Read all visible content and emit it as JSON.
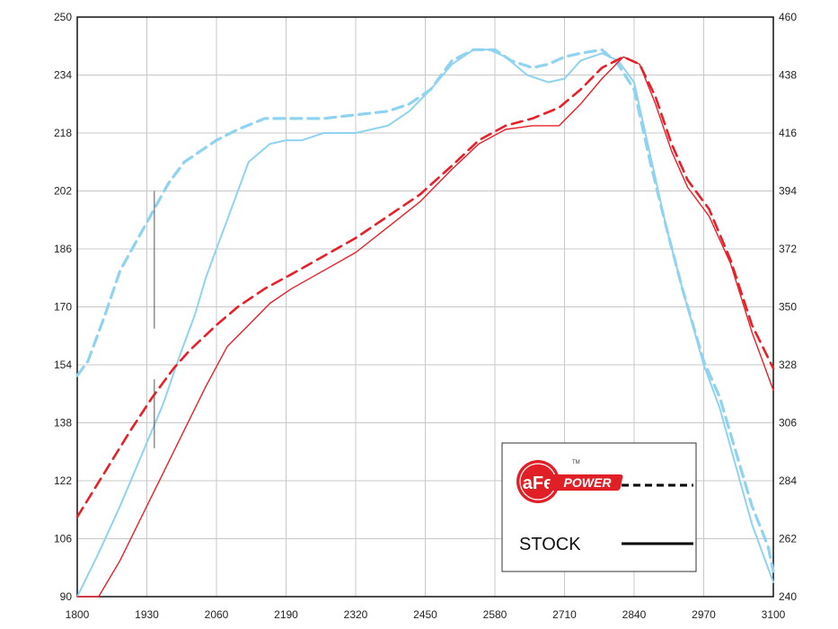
{
  "chart_data": {
    "type": "line",
    "title": "",
    "xlabel": "",
    "ylabel": "",
    "xlim": [
      1800,
      3100
    ],
    "ylim_left": [
      90,
      250
    ],
    "ylim_right": [
      240,
      460
    ],
    "x_ticks": [
      "1800",
      "1930",
      "2060",
      "2190",
      "2320",
      "2450",
      "2580",
      "2710",
      "2840",
      "2970",
      "3100"
    ],
    "y_left_ticks": [
      "90",
      "106",
      "122",
      "138",
      "154",
      "170",
      "186",
      "202",
      "218",
      "234",
      "250"
    ],
    "y_right_ticks": [
      "240",
      "262",
      "284",
      "306",
      "328",
      "350",
      "372",
      "394",
      "416",
      "438",
      "460"
    ],
    "grid": true,
    "colors": {
      "blue": "#8fd3f0",
      "red": "#e8202a",
      "grid": "#c8c8c8",
      "frame": "#111111"
    },
    "series": [
      {
        "color": "blue",
        "style": "dashed",
        "axis": "left",
        "x": [
          1800,
          1820,
          1850,
          1880,
          1910,
          1940,
          1970,
          2000,
          2030,
          2060,
          2100,
          2150,
          2200,
          2260,
          2320,
          2380,
          2420,
          2460,
          2500,
          2540,
          2580,
          2610,
          2650,
          2680,
          2710,
          2740,
          2780,
          2810,
          2840,
          2870,
          2900,
          2930,
          2970,
          3000,
          3030,
          3060,
          3090,
          3100
        ],
        "y": [
          151,
          155,
          167,
          180,
          188,
          196,
          204,
          210,
          213,
          216,
          219,
          222,
          222,
          222,
          223,
          224,
          226,
          230,
          238,
          241,
          241,
          238,
          236,
          237,
          239,
          240,
          241,
          237,
          230,
          210,
          192,
          175,
          155,
          145,
          130,
          115,
          104,
          97
        ]
      },
      {
        "color": "blue",
        "style": "solid",
        "axis": "left",
        "x": [
          1800,
          1840,
          1880,
          1920,
          1960,
          1990,
          2020,
          2040,
          2060,
          2080,
          2120,
          2160,
          2190,
          2220,
          2260,
          2320,
          2380,
          2420,
          2460,
          2500,
          2540,
          2570,
          2600,
          2640,
          2680,
          2710,
          2740,
          2780,
          2810,
          2840,
          2870,
          2900,
          2930,
          2970,
          3000,
          3030,
          3060,
          3090,
          3100
        ],
        "y": [
          90,
          102,
          115,
          129,
          143,
          156,
          168,
          178,
          186,
          194,
          210,
          215,
          216,
          216,
          218,
          218,
          220,
          224,
          230,
          237,
          241,
          241,
          239,
          234,
          232,
          233,
          238,
          240,
          238,
          232,
          212,
          192,
          175,
          154,
          142,
          126,
          110,
          98,
          94
        ]
      },
      {
        "color": "red",
        "style": "dashed",
        "axis": "left",
        "x": [
          1800,
          1850,
          1900,
          1940,
          1980,
          2010,
          2060,
          2100,
          2150,
          2200,
          2260,
          2320,
          2380,
          2440,
          2500,
          2550,
          2600,
          2650,
          2700,
          2740,
          2780,
          2820,
          2850,
          2880,
          2910,
          2940,
          2980,
          3020,
          3060,
          3100
        ],
        "y": [
          112,
          124,
          136,
          145,
          153,
          158,
          165,
          170,
          175,
          179,
          184,
          189,
          195,
          201,
          209,
          216,
          220,
          222,
          225,
          230,
          236,
          239,
          237,
          228,
          215,
          205,
          197,
          183,
          165,
          153
        ]
      },
      {
        "color": "red",
        "style": "solid",
        "axis": "left",
        "x": [
          1800,
          1820,
          1840,
          1880,
          1920,
          1960,
          2000,
          2040,
          2080,
          2120,
          2160,
          2200,
          2260,
          2320,
          2380,
          2440,
          2500,
          2550,
          2600,
          2650,
          2700,
          2740,
          2780,
          2820,
          2850,
          2880,
          2910,
          2940,
          2980,
          3020,
          3060,
          3100
        ],
        "y": [
          90,
          90,
          90,
          100,
          112,
          124,
          136,
          148,
          159,
          165,
          171,
          175,
          180,
          185,
          192,
          199,
          208,
          215,
          219,
          220,
          220,
          226,
          233,
          239,
          237,
          226,
          213,
          203,
          195,
          182,
          163,
          147
        ]
      }
    ],
    "markers": [
      {
        "x": 1944,
        "y_from": 164,
        "y_to": 202
      },
      {
        "x": 1944,
        "y_from": 131,
        "y_to": 150
      }
    ],
    "legend": {
      "placement": "bottom-right",
      "logo": {
        "name": "afe-power-logo",
        "main": "aFe",
        "sub": "POWER",
        "tm": "TM"
      },
      "entries": [
        {
          "label": "",
          "style": "dashed",
          "color": "#000000"
        },
        {
          "label": "STOCK",
          "style": "solid",
          "color": "#000000"
        }
      ]
    }
  }
}
